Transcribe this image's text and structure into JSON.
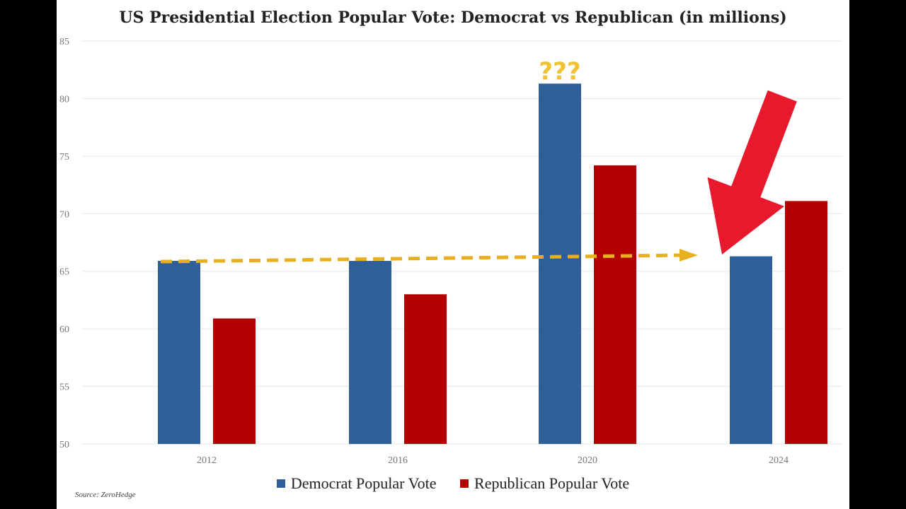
{
  "chart_data": {
    "type": "bar",
    "title": "US Presidential Election Popular Vote: Democrat vs Republican (in millions)",
    "categories": [
      "2012",
      "2016",
      "2020",
      "2024"
    ],
    "series": [
      {
        "name": "Democrat Popular Vote",
        "color": "#2f5f98",
        "values": [
          65.9,
          65.9,
          81.3,
          66.3
        ]
      },
      {
        "name": "Republican Popular Vote",
        "color": "#b30000",
        "values": [
          60.9,
          63.0,
          74.2,
          71.1
        ]
      }
    ],
    "ylim": [
      50,
      85
    ],
    "yticks": [
      "50",
      "55",
      "60",
      "65",
      "70",
      "75",
      "80",
      "85"
    ],
    "annotations": {
      "question_marks": "???",
      "trend_line_value": 65.9,
      "arrow_color": "#e8192c",
      "trend_color": "#e8b020"
    },
    "source": "Source: ZeroHedge"
  }
}
